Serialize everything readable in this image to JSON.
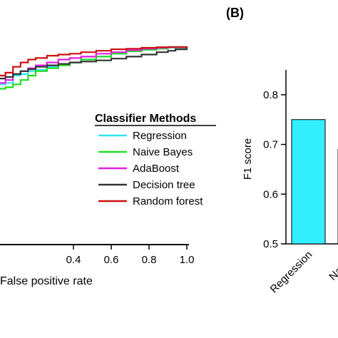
{
  "panel_b_label": "(B)",
  "chart_data": [
    {
      "type": "line",
      "xlabel": "False positive rate",
      "ylabel": "",
      "xlim": [
        0.0,
        1.0
      ],
      "x_ticks": [
        "0.4",
        "0.6",
        "0.8",
        "1.0"
      ],
      "legend": {
        "title": "Classifier Methods",
        "placement": "center-right"
      },
      "grid": false,
      "series": [
        {
          "name": "Regression",
          "color": "#33e6f0",
          "points": [
            [
              0.0,
              0.87
            ],
            [
              0.04,
              0.875
            ],
            [
              0.08,
              0.9
            ],
            [
              0.12,
              0.905
            ],
            [
              0.16,
              0.915
            ],
            [
              0.2,
              0.92
            ],
            [
              0.26,
              0.93
            ],
            [
              0.32,
              0.94
            ],
            [
              0.38,
              0.945
            ],
            [
              0.44,
              0.955
            ],
            [
              0.52,
              0.965
            ],
            [
              0.6,
              0.975
            ],
            [
              0.68,
              0.985
            ],
            [
              0.76,
              0.99
            ],
            [
              0.84,
              0.993
            ],
            [
              0.9,
              0.996
            ],
            [
              1.0,
              1.0
            ]
          ]
        },
        {
          "name": "Naive Bayes",
          "color": "#22dd22",
          "points": [
            [
              0.0,
              0.855
            ],
            [
              0.04,
              0.86
            ],
            [
              0.08,
              0.87
            ],
            [
              0.12,
              0.885
            ],
            [
              0.16,
              0.9
            ],
            [
              0.2,
              0.915
            ],
            [
              0.26,
              0.925
            ],
            [
              0.32,
              0.935
            ],
            [
              0.38,
              0.945
            ],
            [
              0.44,
              0.955
            ],
            [
              0.52,
              0.965
            ],
            [
              0.6,
              0.975
            ],
            [
              0.68,
              0.983
            ],
            [
              0.76,
              0.988
            ],
            [
              0.84,
              0.992
            ],
            [
              0.9,
              0.996
            ],
            [
              1.0,
              1.0
            ]
          ]
        },
        {
          "name": "AdaBoost",
          "color": "#e020e0",
          "points": [
            [
              0.0,
              0.875
            ],
            [
              0.04,
              0.885
            ],
            [
              0.08,
              0.905
            ],
            [
              0.12,
              0.915
            ],
            [
              0.16,
              0.925
            ],
            [
              0.2,
              0.935
            ],
            [
              0.26,
              0.945
            ],
            [
              0.32,
              0.955
            ],
            [
              0.38,
              0.96
            ],
            [
              0.44,
              0.965
            ],
            [
              0.52,
              0.975
            ],
            [
              0.6,
              0.98
            ],
            [
              0.68,
              0.987
            ],
            [
              0.76,
              0.992
            ],
            [
              0.84,
              0.995
            ],
            [
              0.9,
              0.997
            ],
            [
              1.0,
              1.0
            ]
          ]
        },
        {
          "name": "Decision tree",
          "color": "#333333",
          "points": [
            [
              0.0,
              0.89
            ],
            [
              0.04,
              0.895
            ],
            [
              0.08,
              0.905
            ],
            [
              0.12,
              0.915
            ],
            [
              0.16,
              0.922
            ],
            [
              0.2,
              0.93
            ],
            [
              0.26,
              0.935
            ],
            [
              0.32,
              0.94
            ],
            [
              0.38,
              0.945
            ],
            [
              0.44,
              0.948
            ],
            [
              0.52,
              0.952
            ],
            [
              0.6,
              0.958
            ],
            [
              0.68,
              0.965
            ],
            [
              0.76,
              0.972
            ],
            [
              0.84,
              0.98
            ],
            [
              0.9,
              0.985
            ],
            [
              0.94,
              0.99
            ],
            [
              1.0,
              1.0
            ]
          ]
        },
        {
          "name": "Random forest",
          "color": "#cc1111",
          "points": [
            [
              0.0,
              0.9
            ],
            [
              0.04,
              0.91
            ],
            [
              0.08,
              0.93
            ],
            [
              0.12,
              0.945
            ],
            [
              0.16,
              0.955
            ],
            [
              0.2,
              0.96
            ],
            [
              0.26,
              0.968
            ],
            [
              0.32,
              0.972
            ],
            [
              0.38,
              0.975
            ],
            [
              0.44,
              0.98
            ],
            [
              0.52,
              0.985
            ],
            [
              0.6,
              0.99
            ],
            [
              0.68,
              0.992
            ],
            [
              0.76,
              0.995
            ],
            [
              0.84,
              0.997
            ],
            [
              0.9,
              0.998
            ],
            [
              1.0,
              1.0
            ]
          ]
        }
      ]
    },
    {
      "type": "bar",
      "ylabel": "F1 score",
      "ylim": [
        0.5,
        0.85
      ],
      "y_ticks": [
        "0.5",
        "0.6",
        "0.7",
        "0.8"
      ],
      "categories": [
        "Regression",
        "Naive b"
      ],
      "values": [
        0.75,
        0.69
      ],
      "colors": [
        "#33eeff",
        "#22dd22"
      ]
    }
  ]
}
